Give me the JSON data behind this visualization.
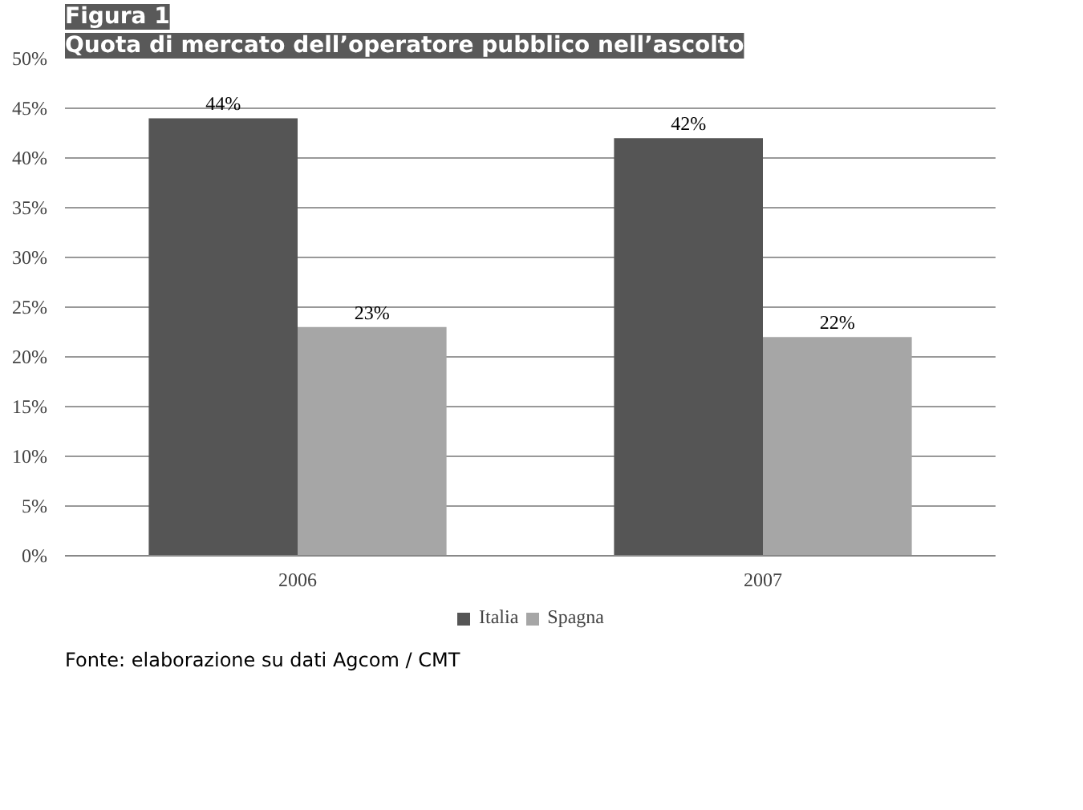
{
  "chart_data": {
    "type": "bar",
    "title": "Figura 1",
    "subtitle": "Quota di mercato dell’operatore pubblico nell’ascolto",
    "categories": [
      "2006",
      "2007"
    ],
    "series": [
      {
        "name": "Italia",
        "color": "#555555",
        "values": [
          44,
          42
        ],
        "value_labels": [
          "44%",
          "42%"
        ]
      },
      {
        "name": "Spagna",
        "color": "#a6a6a6",
        "values": [
          23,
          22
        ],
        "value_labels": [
          "23%",
          "22%"
        ]
      }
    ],
    "ylim": [
      0,
      50
    ],
    "yticks": [
      {
        "value": 0,
        "label": "0%"
      },
      {
        "value": 5,
        "label": "5%"
      },
      {
        "value": 10,
        "label": "10%"
      },
      {
        "value": 15,
        "label": "15%"
      },
      {
        "value": 20,
        "label": "20%"
      },
      {
        "value": 25,
        "label": "25%"
      },
      {
        "value": 30,
        "label": "30%"
      },
      {
        "value": 35,
        "label": "35%"
      },
      {
        "value": 40,
        "label": "40%"
      },
      {
        "value": 45,
        "label": "45%"
      },
      {
        "value": 50,
        "label": "50%"
      }
    ],
    "grid": "y",
    "legend": "bottom",
    "annotations": [
      "Fonte: elaborazione su dati Agcom / CMT"
    ]
  }
}
